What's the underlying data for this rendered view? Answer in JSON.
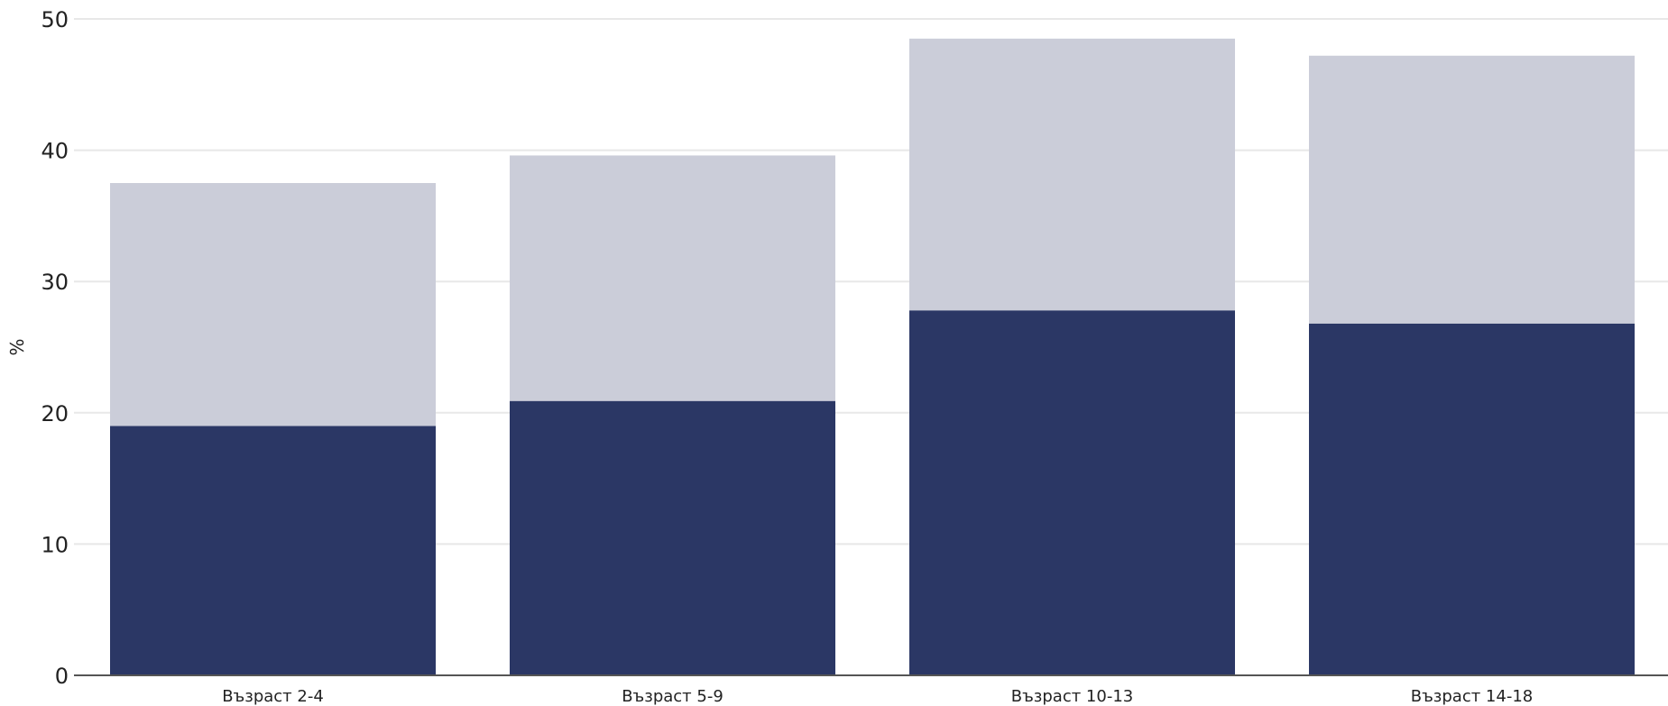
{
  "chart_data": {
    "type": "bar",
    "stacked": true,
    "categories": [
      "Възраст 2-4",
      "Възраст 5-9",
      "Възраст 10-13",
      "Възраст 14-18"
    ],
    "series": [
      {
        "values": [
          19.0,
          20.9,
          27.8,
          26.8
        ],
        "color": "#2b3765"
      },
      {
        "values": [
          18.5,
          18.7,
          20.7,
          20.4
        ],
        "color": "#cbcdd9"
      }
    ],
    "ylabel": "%",
    "ylim": [
      0,
      50
    ],
    "yticks": [
      0,
      10,
      20,
      30,
      40,
      50
    ],
    "grid": true
  }
}
